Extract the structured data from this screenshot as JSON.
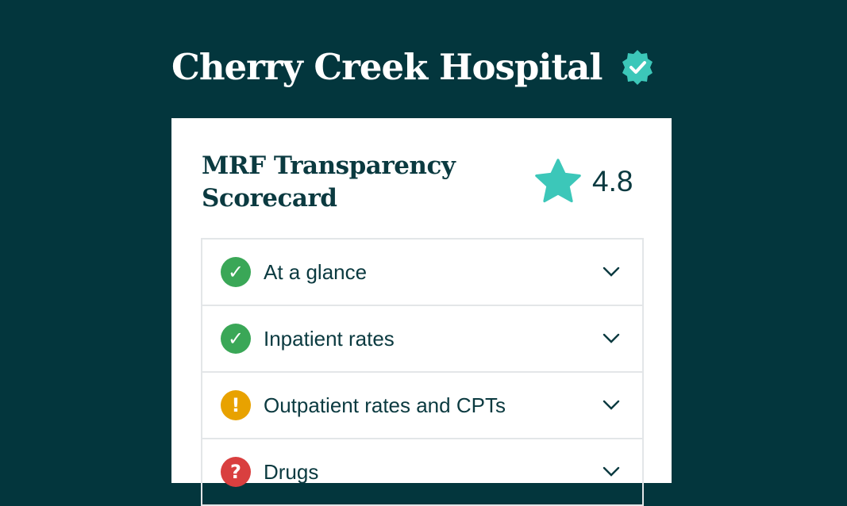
{
  "header": {
    "title": "Cherry Creek Hospital",
    "badge_icon": "verified-badge-icon",
    "badge_color": "#3cc7b9"
  },
  "card": {
    "title": "MRF Transparency Scorecard",
    "rating": {
      "icon": "star-icon",
      "value": "4.8",
      "color": "#3cc7b9"
    },
    "sections": [
      {
        "label": "At a glance",
        "status": "check",
        "icon_symbol": "✓",
        "color": "#3aa757"
      },
      {
        "label": "Inpatient rates",
        "status": "check",
        "icon_symbol": "✓",
        "color": "#3aa757"
      },
      {
        "label": "Outpatient rates and CPTs",
        "status": "warning",
        "icon_symbol": "!",
        "color": "#e8a200"
      },
      {
        "label": "Drugs",
        "status": "unknown",
        "icon_symbol": "?",
        "color": "#d93f3f"
      }
    ]
  }
}
